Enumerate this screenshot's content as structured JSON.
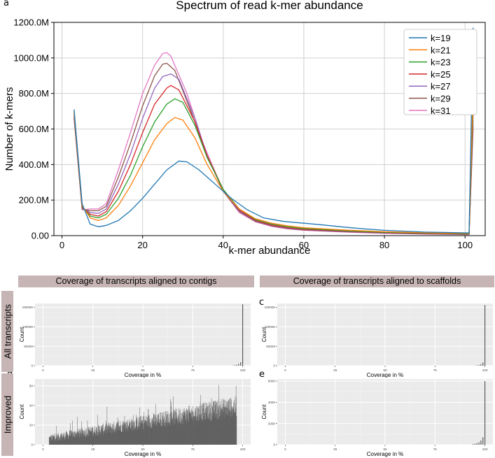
{
  "panel_letters": {
    "a": "a",
    "b": "b",
    "c": "c",
    "d": "d",
    "e": "e"
  },
  "facets": {
    "col1": "Coverage of transcripts aligned to contigs",
    "col2": "Coverage of transcripts aligned to scaffolds",
    "row1": "All transcripts",
    "row2": "Improved"
  },
  "colors": {
    "k19": "#1f77b4",
    "k21": "#ff7f0e",
    "k23": "#2ca02c",
    "k25": "#d62728",
    "k27": "#9467bd",
    "k29": "#8c564b",
    "k31": "#e377c2",
    "facet_strip": "#c7b5b5",
    "ggplot_panel": "#ebebeb",
    "bar_fill": "#595959"
  },
  "chart_data": [
    {
      "type": "line",
      "title": "Spectrum of read k-mer abundance",
      "xlabel": "k-mer abundance",
      "ylabel": "Number of k-mers",
      "xlim": [
        -2,
        105
      ],
      "ylim": [
        0,
        1200
      ],
      "xticks": [
        0,
        20,
        40,
        60,
        80,
        100
      ],
      "xtick_labels": [
        "0",
        "20",
        "40",
        "60",
        "80",
        "100"
      ],
      "yticks": [
        0,
        200,
        400,
        600,
        800,
        1000,
        1200
      ],
      "ytick_labels": [
        "0.00",
        "200.0M",
        "400.0M",
        "600.0M",
        "800.0M",
        "1000.0M",
        "1200.0M"
      ],
      "grid": true,
      "legend": "top-right",
      "y_units": "millions",
      "series": [
        {
          "name": "k=19",
          "x": [
            3,
            5,
            7,
            9,
            11,
            14,
            17,
            20,
            23,
            26,
            29,
            31,
            34,
            38,
            42,
            46,
            50,
            55,
            60,
            65,
            70,
            75,
            80,
            85,
            90,
            95,
            101,
            102
          ],
          "y": [
            710,
            180,
            65,
            50,
            58,
            85,
            140,
            210,
            290,
            370,
            420,
            415,
            370,
            290,
            210,
            145,
            100,
            80,
            70,
            60,
            48,
            38,
            30,
            25,
            20,
            18,
            15,
            1170
          ]
        },
        {
          "name": "k=21",
          "x": [
            3,
            5,
            7,
            9,
            11,
            14,
            17,
            20,
            23,
            26,
            28,
            30,
            33,
            36,
            40,
            44,
            48,
            52,
            56,
            60,
            70,
            80,
            90,
            101,
            102
          ],
          "y": [
            700,
            170,
            100,
            85,
            100,
            170,
            280,
            410,
            540,
            630,
            665,
            650,
            550,
            400,
            250,
            150,
            95,
            70,
            55,
            45,
            32,
            22,
            16,
            12,
            830
          ]
        },
        {
          "name": "k=23",
          "x": [
            3,
            5,
            7,
            9,
            11,
            14,
            17,
            20,
            23,
            26,
            28,
            30,
            33,
            36,
            40,
            44,
            48,
            52,
            56,
            60,
            70,
            80,
            90,
            101,
            102
          ],
          "y": [
            690,
            165,
            110,
            100,
            120,
            210,
            340,
            500,
            640,
            740,
            770,
            750,
            620,
            440,
            260,
            150,
            90,
            65,
            50,
            40,
            28,
            19,
            14,
            10,
            740
          ]
        },
        {
          "name": "k=25",
          "x": [
            3,
            5,
            7,
            9,
            11,
            14,
            17,
            20,
            23,
            26,
            27,
            29,
            33,
            36,
            40,
            44,
            48,
            52,
            56,
            60,
            70,
            80,
            90,
            101,
            102
          ],
          "y": [
            680,
            160,
            120,
            110,
            135,
            250,
            400,
            580,
            740,
            830,
            845,
            820,
            640,
            450,
            260,
            145,
            85,
            60,
            45,
            36,
            26,
            17,
            12,
            9,
            690
          ]
        },
        {
          "name": "k=27",
          "x": [
            3,
            5,
            7,
            9,
            11,
            14,
            17,
            20,
            23,
            25,
            27,
            29,
            33,
            36,
            40,
            44,
            48,
            52,
            56,
            60,
            70,
            80,
            90,
            101,
            102
          ],
          "y": [
            670,
            155,
            130,
            125,
            150,
            290,
            460,
            660,
            830,
            895,
            910,
            880,
            660,
            450,
            255,
            140,
            82,
            57,
            42,
            34,
            24,
            15,
            11,
            8,
            650
          ]
        },
        {
          "name": "k=29",
          "x": [
            3,
            5,
            7,
            9,
            11,
            14,
            17,
            20,
            23,
            25,
            26,
            28,
            32,
            36,
            40,
            44,
            48,
            52,
            56,
            60,
            70,
            80,
            90,
            101,
            102
          ],
          "y": [
            665,
            150,
            140,
            140,
            165,
            330,
            520,
            730,
            900,
            965,
            970,
            930,
            700,
            450,
            250,
            135,
            80,
            55,
            40,
            32,
            22,
            14,
            10,
            7,
            620
          ]
        },
        {
          "name": "k=31",
          "x": [
            3,
            5,
            7,
            9,
            11,
            14,
            17,
            20,
            23,
            25,
            26,
            27,
            31,
            35,
            40,
            44,
            48,
            52,
            56,
            60,
            70,
            80,
            90,
            101,
            102
          ],
          "y": [
            660,
            145,
            150,
            150,
            180,
            370,
            580,
            800,
            960,
            1025,
            1030,
            1010,
            800,
            520,
            250,
            130,
            78,
            52,
            38,
            30,
            20,
            13,
            9,
            6,
            600
          ]
        }
      ]
    },
    {
      "type": "bar",
      "panel": "b",
      "xlabel": "Coverage in %",
      "ylabel": "Count",
      "xlim": [
        -4,
        104
      ],
      "ylim": [
        0,
        160000
      ],
      "xticks": [
        0,
        25,
        50,
        75,
        100
      ],
      "xtick_labels": [
        "0",
        "25",
        "50",
        "75",
        "100"
      ],
      "yticks": [
        0,
        50000,
        100000,
        150000
      ],
      "ytick_labels": [
        "0",
        "50000",
        "100000",
        "150000"
      ],
      "x": [
        95,
        96,
        97,
        98,
        99,
        100
      ],
      "values": [
        600,
        1200,
        2400,
        4500,
        9000,
        158000
      ]
    },
    {
      "type": "bar",
      "panel": "c",
      "xlabel": "Coverage in %",
      "ylabel": "Count",
      "xlim": [
        -4,
        104
      ],
      "ylim": [
        0,
        160000
      ],
      "xticks": [
        0,
        25,
        50,
        75,
        100
      ],
      "xtick_labels": [
        "0",
        "25",
        "50",
        "75",
        "100"
      ],
      "yticks": [
        0,
        50000,
        100000,
        150000
      ],
      "ytick_labels": [
        "0",
        "50000",
        "100000",
        "150000"
      ],
      "x": [
        95,
        96,
        97,
        98,
        99,
        100
      ],
      "values": [
        500,
        1000,
        2000,
        4000,
        8000,
        156000
      ]
    },
    {
      "type": "bar",
      "panel": "d",
      "xlabel": "Coverage in %",
      "ylabel": "Count",
      "xlim": [
        -4,
        104
      ],
      "ylim": [
        0,
        67
      ],
      "xticks": [
        0,
        25,
        50,
        75,
        100
      ],
      "xtick_labels": [
        "0",
        "25",
        "50",
        "75",
        "100"
      ],
      "yticks": [
        0,
        20,
        40,
        60
      ],
      "ytick_labels": [
        "0",
        "20",
        "40",
        "60"
      ],
      "bin_start": 3,
      "bin_width": 0.1,
      "trend": {
        "start": 6,
        "end": 38,
        "spread": 22
      },
      "note": "~940 narrow bins with noisy counts rising from about 6 at 3% to about 38 near 96%, peaks up to ~65"
    },
    {
      "type": "bar",
      "panel": "e",
      "xlabel": "Coverage in %",
      "ylabel": "Count",
      "xlim": [
        -4,
        104
      ],
      "ylim": [
        0,
        6200
      ],
      "xticks": [
        0,
        25,
        50,
        75,
        100
      ],
      "xtick_labels": [
        "0",
        "25",
        "50",
        "75",
        "100"
      ],
      "yticks": [
        0,
        2000,
        4000,
        6000
      ],
      "ytick_labels": [
        "0",
        "2000",
        "4000",
        "6000"
      ],
      "x": [
        94,
        95,
        96,
        97,
        98,
        99,
        100
      ],
      "values": [
        60,
        90,
        140,
        230,
        400,
        700,
        6000
      ]
    }
  ]
}
